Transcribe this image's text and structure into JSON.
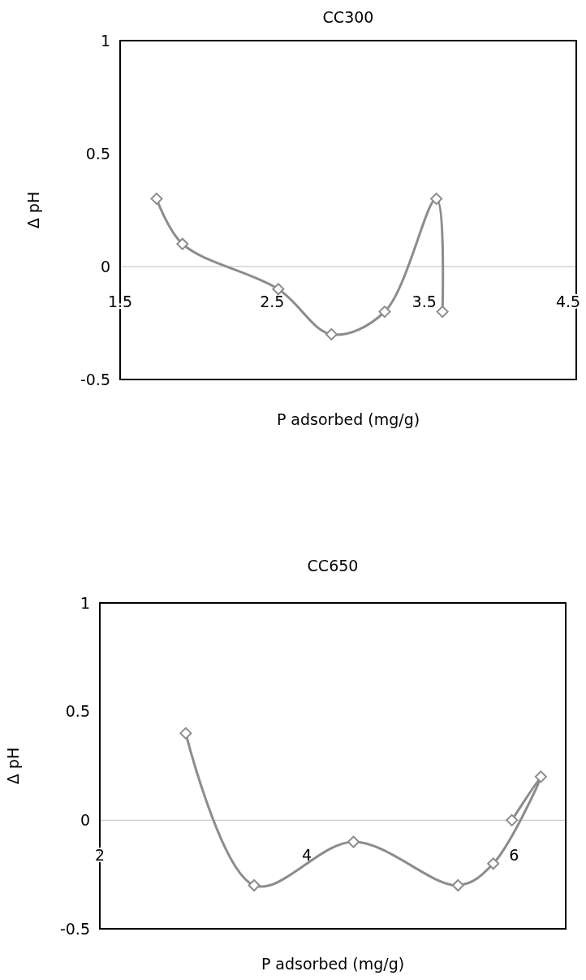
{
  "chart_data": [
    {
      "type": "line",
      "title": "CC300",
      "xlabel": "P adsorbed (mg/g)",
      "ylabel": "Δ pH",
      "x": [
        1.74,
        1.91,
        2.54,
        2.89,
        3.24,
        3.58,
        3.62
      ],
      "values": [
        0.3,
        0.1,
        -0.1,
        -0.3,
        -0.2,
        0.3,
        -0.2
      ],
      "color": "#8c8c8c",
      "marker": "diamond",
      "line_style": "solid",
      "xlim": [
        1.5,
        4.5
      ],
      "xticks": [
        1.5,
        2.5,
        3.5,
        4.5
      ],
      "ylim": [
        -0.5,
        1
      ],
      "yticks": [
        -0.5,
        0,
        0.5,
        1
      ],
      "grid": false
    },
    {
      "type": "line",
      "title": "CC650",
      "xlabel": "P adsorbed (mg/g)",
      "ylabel": "Δ pH",
      "x": [
        2.83,
        3.49,
        4.45,
        5.46,
        5.8,
        6.26,
        5.98
      ],
      "values": [
        0.4,
        -0.3,
        -0.1,
        -0.3,
        -0.2,
        0.2,
        0
      ],
      "color": "#8c8c8c",
      "marker": "diamond",
      "line_style": "solid",
      "xlim": [
        2,
        6.5
      ],
      "xticks": [
        2,
        4,
        6
      ],
      "ylim": [
        -0.5,
        1
      ],
      "yticks": [
        -0.5,
        0,
        0.5,
        1
      ],
      "grid": false
    }
  ]
}
